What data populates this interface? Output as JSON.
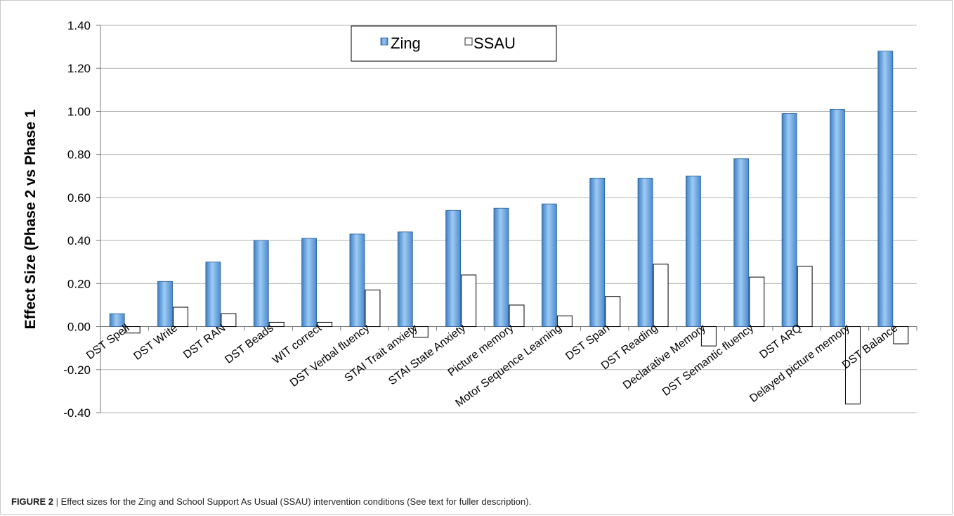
{
  "chart_data": {
    "type": "bar",
    "title": "",
    "xlabel": "",
    "ylabel": "Effect Size (Phase 2 vs Phase 1",
    "ylim": [
      -0.4,
      1.4
    ],
    "yticks": [
      "1.40",
      "1.20",
      "1.00",
      "0.80",
      "0.60",
      "0.40",
      "0.20",
      "0.00",
      "-0.20",
      "-0.40"
    ],
    "grid": true,
    "legend_position": "top-center",
    "categories": [
      "DST Spell",
      "DST Write",
      "DST RAN",
      "DST Beads",
      "WIT correct",
      "DST Verbal fluency",
      "STAI Trait anxiety",
      "STAI State Anxiety",
      "Picture memory",
      "Motor Sequence Learning",
      "DST Span",
      "DST Reading",
      "Declarative Memory",
      "DST Semantic fluency",
      "DST ARQ",
      "Delayed picture memory",
      "DST Balance"
    ],
    "series": [
      {
        "name": "Zing",
        "color": "#5b9bd5",
        "values": [
          0.06,
          0.21,
          0.3,
          0.4,
          0.41,
          0.43,
          0.44,
          0.54,
          0.55,
          0.57,
          0.69,
          0.69,
          0.7,
          0.78,
          0.99,
          1.01,
          1.28
        ]
      },
      {
        "name": "SSAU",
        "color": "#ffffff",
        "values": [
          -0.03,
          0.09,
          0.06,
          0.02,
          0.02,
          0.17,
          -0.05,
          0.24,
          0.1,
          0.05,
          0.14,
          0.29,
          -0.09,
          0.23,
          0.28,
          -0.36,
          -0.08
        ]
      }
    ]
  },
  "caption": {
    "label": "FIGURE 2",
    "separator": "|",
    "text": "Effect sizes for the Zing and School Support As Usual (SSAU) intervention conditions (See text for fuller description)."
  }
}
